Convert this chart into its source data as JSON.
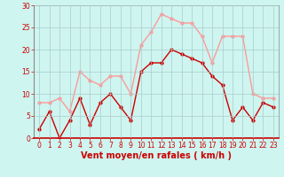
{
  "x": [
    0,
    1,
    2,
    3,
    4,
    5,
    6,
    7,
    8,
    9,
    10,
    11,
    12,
    13,
    14,
    15,
    16,
    17,
    18,
    19,
    20,
    21,
    22,
    23
  ],
  "wind_avg": [
    2,
    6,
    0,
    4,
    9,
    3,
    8,
    10,
    7,
    4,
    15,
    17,
    17,
    20,
    19,
    18,
    17,
    14,
    12,
    4,
    7,
    4,
    8,
    7
  ],
  "wind_gust": [
    8,
    8,
    9,
    6,
    15,
    13,
    12,
    14,
    14,
    10,
    21,
    24,
    28,
    27,
    26,
    26,
    23,
    17,
    23,
    23,
    23,
    10,
    9,
    9
  ],
  "avg_color": "#cc0000",
  "gust_color": "#ff9999",
  "bg_color": "#cef5f0",
  "grid_color": "#aacccc",
  "tick_label_color": "#cc0000",
  "xlabel": "Vent moyen/en rafales ( km/h )",
  "xlabel_color": "#cc0000",
  "ylabel_ticks": [
    0,
    5,
    10,
    15,
    20,
    25,
    30
  ],
  "ylim": [
    0,
    30
  ],
  "xlim": [
    -0.5,
    23.5
  ],
  "marker_size": 2.5,
  "linewidth": 1.0,
  "xlabel_fontsize": 7,
  "tick_fontsize": 5.5
}
